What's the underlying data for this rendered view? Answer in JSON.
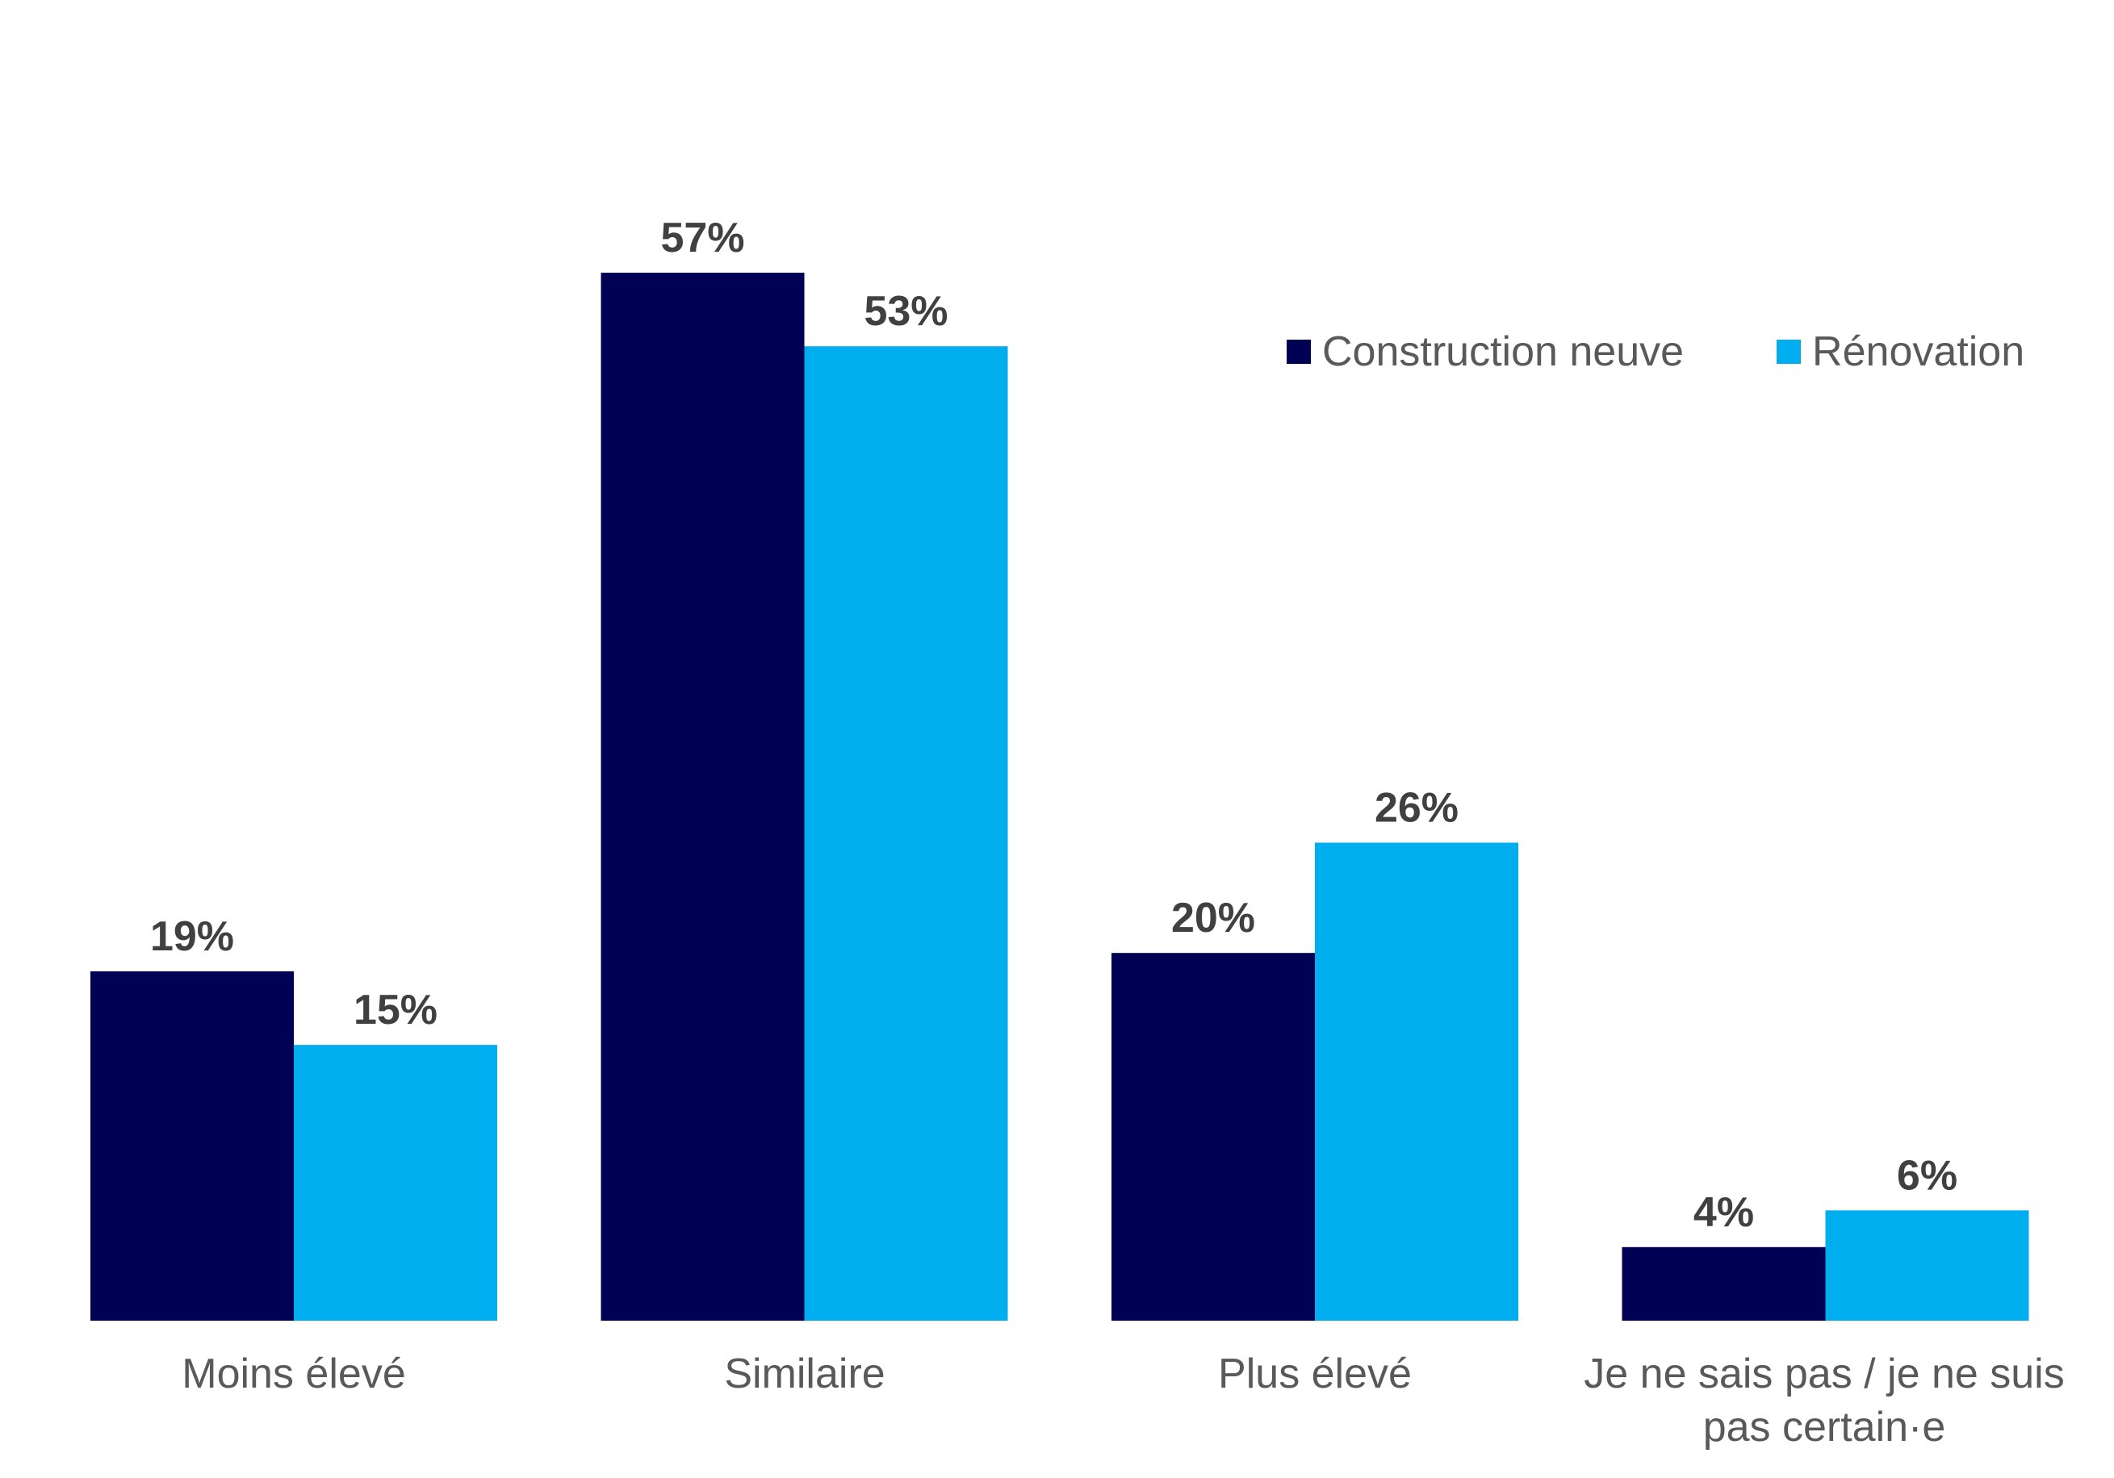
{
  "chart_data": {
    "type": "bar",
    "categories": [
      "Moins élevé",
      "Similaire",
      "Plus élevé",
      "Je ne sais pas / je ne suis pas certain·e"
    ],
    "category_lines": [
      [
        "Moins élevé"
      ],
      [
        "Similaire"
      ],
      [
        "Plus élevé"
      ],
      [
        "Je ne sais pas / je ne suis",
        "pas certain·e"
      ]
    ],
    "series": [
      {
        "name": "Construction neuve",
        "values": [
          19,
          57,
          20,
          4
        ],
        "labels": [
          "19%",
          "57%",
          "20%",
          "4%"
        ],
        "color": "#000055"
      },
      {
        "name": "Rénovation",
        "values": [
          15,
          53,
          26,
          6
        ],
        "labels": [
          "15%",
          "53%",
          "26%",
          "6%"
        ],
        "color": "#00AEEF"
      }
    ],
    "ylim": [
      0,
      57
    ],
    "grid": false,
    "legend_position": "top-right",
    "value_label_color": "#404040",
    "category_label_color": "#595959"
  }
}
